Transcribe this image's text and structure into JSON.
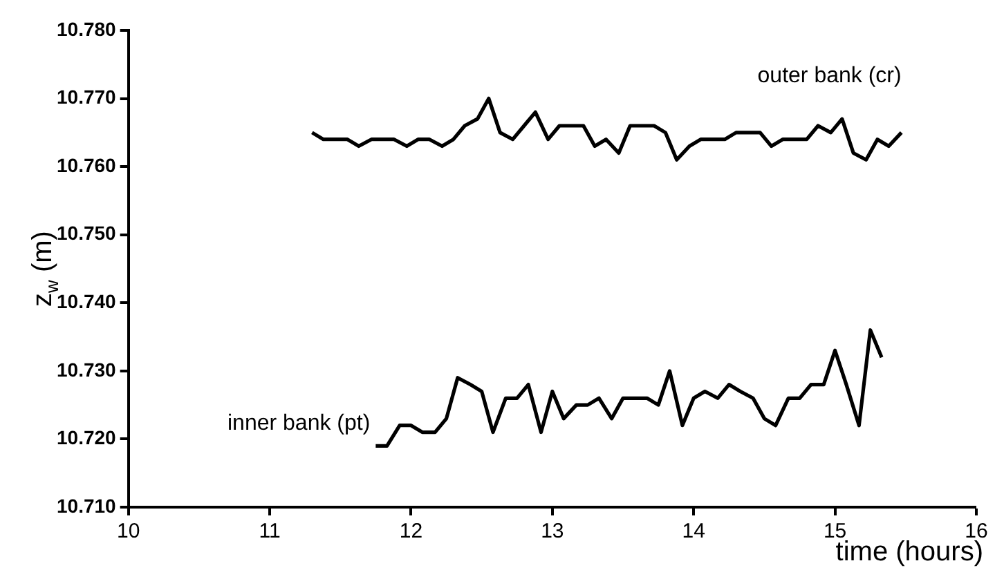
{
  "chart_data": {
    "type": "line",
    "xlabel": "time (hours)",
    "ylabel": "z$_{w}$ (m)",
    "xlim": [
      10,
      16
    ],
    "xticks": [
      10,
      11,
      12,
      13,
      14,
      15,
      16
    ],
    "ylim": [
      10.71,
      10.78
    ],
    "yticks": [
      {
        "value": 10.71,
        "label": "10.710"
      },
      {
        "value": 10.72,
        "label": "10.720"
      },
      {
        "value": 10.73,
        "label": "10.730"
      },
      {
        "value": 10.74,
        "label": "10.740"
      },
      {
        "value": 10.75,
        "label": "10.750"
      },
      {
        "value": 10.76,
        "label": "10.760"
      },
      {
        "value": 10.77,
        "label": "10.770"
      },
      {
        "value": 10.78,
        "label": "10.780"
      }
    ],
    "grid": false,
    "legend": false,
    "marker": "none",
    "line_style": "solid",
    "series": [
      {
        "name": "outer bank (cr)",
        "color": "#000000",
        "x": [
          11.3,
          11.38,
          11.47,
          11.55,
          11.63,
          11.72,
          11.8,
          11.88,
          11.97,
          12.05,
          12.13,
          12.22,
          12.3,
          12.38,
          12.47,
          12.55,
          12.63,
          12.72,
          12.8,
          12.88,
          12.97,
          13.05,
          13.13,
          13.22,
          13.3,
          13.38,
          13.47,
          13.55,
          13.63,
          13.72,
          13.8,
          13.88,
          13.97,
          14.05,
          14.13,
          14.22,
          14.3,
          14.38,
          14.47,
          14.55,
          14.63,
          14.72,
          14.8,
          14.88,
          14.97,
          15.05,
          15.13,
          15.22,
          15.3,
          15.38,
          15.47
        ],
        "values": [
          10.765,
          10.764,
          10.764,
          10.764,
          10.763,
          10.764,
          10.764,
          10.764,
          10.763,
          10.764,
          10.764,
          10.763,
          10.764,
          10.766,
          10.767,
          10.77,
          10.765,
          10.764,
          10.766,
          10.768,
          10.764,
          10.766,
          10.766,
          10.766,
          10.763,
          10.764,
          10.762,
          10.766,
          10.766,
          10.766,
          10.765,
          10.761,
          10.763,
          10.764,
          10.764,
          10.764,
          10.765,
          10.765,
          10.765,
          10.763,
          10.764,
          10.764,
          10.764,
          10.766,
          10.765,
          10.767,
          10.762,
          10.761,
          10.764,
          10.763,
          10.765
        ]
      },
      {
        "name": "inner bank (pt)",
        "color": "#000000",
        "x": [
          11.75,
          11.83,
          11.92,
          12.0,
          12.08,
          12.17,
          12.25,
          12.33,
          12.42,
          12.5,
          12.58,
          12.67,
          12.75,
          12.83,
          12.92,
          13.0,
          13.08,
          13.17,
          13.25,
          13.33,
          13.42,
          13.5,
          13.58,
          13.67,
          13.75,
          13.83,
          13.92,
          14.0,
          14.08,
          14.17,
          14.25,
          14.33,
          14.42,
          14.5,
          14.58,
          14.67,
          14.75,
          14.83,
          14.92,
          15.0,
          15.08,
          15.17,
          15.25,
          15.33
        ],
        "values": [
          10.719,
          10.719,
          10.722,
          10.722,
          10.721,
          10.721,
          10.723,
          10.729,
          10.728,
          10.727,
          10.721,
          10.726,
          10.726,
          10.728,
          10.721,
          10.727,
          10.723,
          10.725,
          10.725,
          10.726,
          10.723,
          10.726,
          10.726,
          10.726,
          10.725,
          10.73,
          10.722,
          10.726,
          10.727,
          10.726,
          10.728,
          10.727,
          10.726,
          10.723,
          10.722,
          10.726,
          10.726,
          10.728,
          10.728,
          10.733,
          10.728,
          10.722,
          10.736,
          10.732
        ]
      }
    ]
  }
}
